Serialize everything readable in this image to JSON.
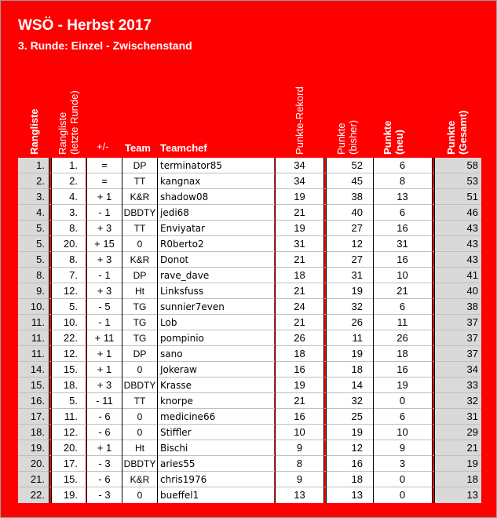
{
  "title": "WSÖ - Herbst 2017",
  "subtitle": "3. Runde: Einzel - Zwischenstand",
  "headers": {
    "rangliste": "Rangliste",
    "rangliste_letzte_1": "Rangliste",
    "rangliste_letzte_2": "(letzte Runde)",
    "diff": "+/-",
    "team": "Team",
    "teamchef": "Teamchef",
    "rekord": "Punkte-Rekord",
    "bisher_1": "Punkte",
    "bisher_2": "(bisher)",
    "neu_1": "Punkte",
    "neu_2": "(neu)",
    "gesamt_1": "Punkte",
    "gesamt_2": "(Gesamt)"
  },
  "rows": [
    {
      "rank": "1.",
      "last": "1.",
      "diff": "=",
      "team": "DP",
      "chef": "terminator85",
      "rekord": "34",
      "bisher": "52",
      "neu": "6",
      "gesamt": "58"
    },
    {
      "rank": "2.",
      "last": "2.",
      "diff": "=",
      "team": "TT",
      "chef": "kangnax",
      "rekord": "34",
      "bisher": "45",
      "neu": "8",
      "gesamt": "53"
    },
    {
      "rank": "3.",
      "last": "4.",
      "diff": "+ 1",
      "team": "K&R",
      "chef": "shadow08",
      "rekord": "19",
      "bisher": "38",
      "neu": "13",
      "gesamt": "51"
    },
    {
      "rank": "4.",
      "last": "3.",
      "diff": "- 1",
      "team": "DBDTY",
      "chef": "jedi68",
      "rekord": "21",
      "bisher": "40",
      "neu": "6",
      "gesamt": "46"
    },
    {
      "rank": "5.",
      "last": "8.",
      "diff": "+ 3",
      "team": "TT",
      "chef": "Enviyatar",
      "rekord": "19",
      "bisher": "27",
      "neu": "16",
      "gesamt": "43"
    },
    {
      "rank": "5.",
      "last": "20.",
      "diff": "+ 15",
      "team": "0",
      "chef": "R0berto2",
      "rekord": "31",
      "bisher": "12",
      "neu": "31",
      "gesamt": "43"
    },
    {
      "rank": "5.",
      "last": "8.",
      "diff": "+ 3",
      "team": "K&R",
      "chef": "Donot",
      "rekord": "21",
      "bisher": "27",
      "neu": "16",
      "gesamt": "43"
    },
    {
      "rank": "8.",
      "last": "7.",
      "diff": "- 1",
      "team": "DP",
      "chef": "rave_dave",
      "rekord": "18",
      "bisher": "31",
      "neu": "10",
      "gesamt": "41"
    },
    {
      "rank": "9.",
      "last": "12.",
      "diff": "+ 3",
      "team": "Ht",
      "chef": "Linksfuss",
      "rekord": "21",
      "bisher": "19",
      "neu": "21",
      "gesamt": "40"
    },
    {
      "rank": "10.",
      "last": "5.",
      "diff": "- 5",
      "team": "TG",
      "chef": "sunnier7even",
      "rekord": "24",
      "bisher": "32",
      "neu": "6",
      "gesamt": "38"
    },
    {
      "rank": "11.",
      "last": "10.",
      "diff": "- 1",
      "team": "TG",
      "chef": "Lob",
      "rekord": "21",
      "bisher": "26",
      "neu": "11",
      "gesamt": "37"
    },
    {
      "rank": "11.",
      "last": "22.",
      "diff": "+ 11",
      "team": "TG",
      "chef": "pompinio",
      "rekord": "26",
      "bisher": "11",
      "neu": "26",
      "gesamt": "37"
    },
    {
      "rank": "11.",
      "last": "12.",
      "diff": "+ 1",
      "team": "DP",
      "chef": "sano",
      "rekord": "18",
      "bisher": "19",
      "neu": "18",
      "gesamt": "37"
    },
    {
      "rank": "14.",
      "last": "15.",
      "diff": "+ 1",
      "team": "0",
      "chef": "Jokeraw",
      "rekord": "16",
      "bisher": "18",
      "neu": "16",
      "gesamt": "34"
    },
    {
      "rank": "15.",
      "last": "18.",
      "diff": "+ 3",
      "team": "DBDTY",
      "chef": "Krasse",
      "rekord": "19",
      "bisher": "14",
      "neu": "19",
      "gesamt": "33"
    },
    {
      "rank": "16.",
      "last": "5.",
      "diff": "- 11",
      "team": "TT",
      "chef": "knorpe",
      "rekord": "21",
      "bisher": "32",
      "neu": "0",
      "gesamt": "32"
    },
    {
      "rank": "17.",
      "last": "11.",
      "diff": "- 6",
      "team": "0",
      "chef": "medicine66",
      "rekord": "16",
      "bisher": "25",
      "neu": "6",
      "gesamt": "31"
    },
    {
      "rank": "18.",
      "last": "12.",
      "diff": "- 6",
      "team": "0",
      "chef": "Stiffler",
      "rekord": "10",
      "bisher": "19",
      "neu": "10",
      "gesamt": "29"
    },
    {
      "rank": "19.",
      "last": "20.",
      "diff": "+ 1",
      "team": "Ht",
      "chef": "Bischi",
      "rekord": "9",
      "bisher": "12",
      "neu": "9",
      "gesamt": "21"
    },
    {
      "rank": "20.",
      "last": "17.",
      "diff": "- 3",
      "team": "DBDTY",
      "chef": "aries55",
      "rekord": "8",
      "bisher": "16",
      "neu": "3",
      "gesamt": "19"
    },
    {
      "rank": "21.",
      "last": "15.",
      "diff": "- 6",
      "team": "K&R",
      "chef": "chris1976",
      "rekord": "9",
      "bisher": "18",
      "neu": "0",
      "gesamt": "18"
    },
    {
      "rank": "22.",
      "last": "19.",
      "diff": "- 3",
      "team": "0",
      "chef": "bueffel1",
      "rekord": "13",
      "bisher": "13",
      "neu": "0",
      "gesamt": "13"
    }
  ],
  "colors": {
    "background": "#ff0000",
    "header_text": "#ffffff",
    "shaded_cell": "#d9d9d9"
  }
}
